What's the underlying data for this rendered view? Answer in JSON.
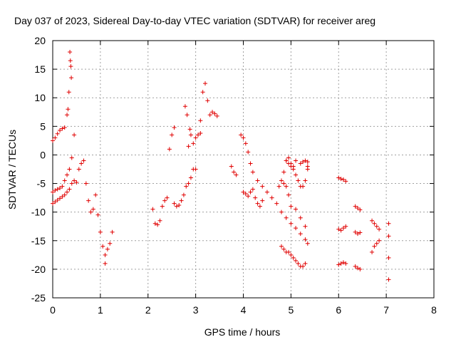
{
  "chart_data": {
    "type": "scatter",
    "title": "Day 037 of 2023, Sidereal Day-to-day VTEC variation (SDTVAR) for receiver areg",
    "xlabel": "GPS time / hours",
    "ylabel": "SDTVAR / TECUs",
    "xlim": [
      0,
      8
    ],
    "ylim": [
      -25,
      20
    ],
    "xticks": [
      0,
      1,
      2,
      3,
      4,
      5,
      6,
      7,
      8
    ],
    "yticks": [
      -25,
      -20,
      -15,
      -10,
      -5,
      0,
      5,
      10,
      15,
      20
    ],
    "xtick_labels": [
      "0",
      "1",
      "2",
      "3",
      "4",
      "5",
      "6",
      "7",
      "8"
    ],
    "ytick_labels": [
      "-25",
      "-20",
      "-15",
      "-10",
      "-5",
      "0",
      "5",
      "10",
      "15",
      "20"
    ],
    "grid": true,
    "marker": "+",
    "marker_color": "#e00000",
    "series": [
      {
        "name": "seg-a-upper",
        "x": [
          0.0,
          0.05,
          0.1,
          0.15,
          0.2,
          0.25,
          0.3,
          0.32,
          0.34,
          0.36
        ],
        "y": [
          2.5,
          3.0,
          3.7,
          4.3,
          4.6,
          4.8,
          7.0,
          8.0,
          11.0,
          18.0
        ]
      },
      {
        "name": "seg-a-spike",
        "x": [
          0.37,
          0.38,
          0.39
        ],
        "y": [
          16.5,
          15.5,
          13.5
        ]
      },
      {
        "name": "seg-a-mid",
        "x": [
          0.0,
          0.05,
          0.1,
          0.15,
          0.2,
          0.25,
          0.3,
          0.35,
          0.4,
          0.45
        ],
        "y": [
          -6.5,
          -6.2,
          -6.0,
          -5.8,
          -5.5,
          -4.5,
          -3.5,
          -2.5,
          -0.5,
          3.5
        ]
      },
      {
        "name": "seg-a-low",
        "x": [
          0.0,
          0.05,
          0.1,
          0.15,
          0.2,
          0.25,
          0.3,
          0.35,
          0.4,
          0.45,
          0.5
        ],
        "y": [
          -8.5,
          -8.2,
          -7.9,
          -7.6,
          -7.3,
          -7.0,
          -6.5,
          -6.0,
          -5.0,
          -4.5,
          -4.8
        ]
      },
      {
        "name": "seg-b",
        "x": [
          0.55,
          0.6,
          0.65,
          0.7,
          0.75,
          0.8,
          0.85,
          0.9,
          0.95,
          1.0,
          1.05,
          1.1
        ],
        "y": [
          -2.5,
          -1.5,
          -1.0,
          -5.0,
          -8.0,
          -10.0,
          -9.5,
          -7.0,
          -10.5,
          -13.5,
          -16.0,
          -19.0
        ]
      },
      {
        "name": "seg-b2",
        "x": [
          1.1,
          1.15,
          1.2,
          1.25
        ],
        "y": [
          -17.5,
          -16.5,
          -15.5,
          -13.5
        ]
      },
      {
        "name": "seg-c",
        "x": [
          2.1,
          2.15,
          2.2,
          2.25,
          2.3,
          2.35,
          2.4
        ],
        "y": [
          -9.5,
          -12.0,
          -12.2,
          -11.5,
          -9.0,
          -8.0,
          -7.5
        ]
      },
      {
        "name": "seg-c2",
        "x": [
          2.45,
          2.5,
          2.55
        ],
        "y": [
          1.0,
          3.5,
          4.8
        ]
      },
      {
        "name": "seg-d",
        "x": [
          2.55,
          2.6,
          2.65,
          2.7,
          2.75,
          2.8,
          2.85,
          2.9,
          2.95,
          3.0
        ],
        "y": [
          -8.5,
          -9.0,
          -8.8,
          -8.0,
          -7.0,
          -5.5,
          -5.0,
          -4.0,
          -2.5,
          -2.5
        ]
      },
      {
        "name": "seg-d2",
        "x": [
          2.78,
          2.82,
          2.85,
          2.88,
          2.9,
          2.95,
          3.0,
          3.05,
          3.1
        ],
        "y": [
          8.5,
          7.0,
          1.5,
          4.5,
          3.5,
          2.0,
          3.0,
          3.5,
          3.8
        ]
      },
      {
        "name": "seg-d3",
        "x": [
          3.1,
          3.15,
          3.2,
          3.25,
          3.3,
          3.35,
          3.4,
          3.45
        ],
        "y": [
          6.0,
          11.0,
          12.5,
          9.5,
          7.0,
          7.5,
          7.2,
          6.8
        ]
      },
      {
        "name": "seg-e",
        "x": [
          3.75,
          3.8,
          3.85
        ],
        "y": [
          -2.0,
          -3.0,
          -3.5
        ]
      },
      {
        "name": "seg-f",
        "x": [
          3.95,
          4.0,
          4.05,
          4.1,
          4.15,
          4.2,
          4.3,
          4.4,
          4.5,
          4.6,
          4.7,
          4.8,
          4.9,
          5.0,
          5.1,
          5.2,
          5.3,
          5.35
        ],
        "y": [
          3.5,
          3.0,
          2.0,
          0.5,
          -1.5,
          -3.0,
          -4.5,
          -5.5,
          -6.5,
          -7.5,
          -8.5,
          -10.0,
          -11.0,
          -12.0,
          -12.8,
          -13.8,
          -14.8,
          -15.5
        ]
      },
      {
        "name": "seg-f2",
        "x": [
          4.0,
          4.05,
          4.1,
          4.15,
          4.2,
          4.25,
          4.3,
          4.35,
          4.4
        ],
        "y": [
          -6.5,
          -6.8,
          -7.2,
          -6.5,
          -6.0,
          -7.5,
          -8.5,
          -9.0,
          -8.0
        ]
      },
      {
        "name": "seg-g",
        "x": [
          4.75,
          4.8,
          4.85,
          4.9,
          4.95,
          5.0,
          5.05,
          5.1
        ],
        "y": [
          -5.5,
          -4.5,
          -3.0,
          -1.0,
          -0.5,
          -1.5,
          -2.0,
          -1.0
        ]
      },
      {
        "name": "seg-g2",
        "x": [
          4.8,
          4.85,
          4.9,
          4.95,
          5.0,
          5.1,
          5.2,
          5.3,
          5.35
        ],
        "y": [
          -4.5,
          -5.0,
          -5.5,
          -7.0,
          -9.0,
          -9.5,
          -11.0,
          -12.5,
          -2.0
        ]
      },
      {
        "name": "seg-g3",
        "x": [
          4.9,
          4.95,
          5.0,
          5.05,
          5.1,
          5.15,
          5.2,
          5.25,
          5.3,
          5.35
        ],
        "y": [
          -1.0,
          -1.5,
          -2.0,
          -2.5,
          -3.5,
          -4.5,
          -5.5,
          -5.5,
          -4.5,
          -2.5
        ]
      },
      {
        "name": "seg-g4",
        "x": [
          5.2,
          5.25,
          5.3,
          5.35
        ],
        "y": [
          -1.5,
          -1.2,
          -1.0,
          -1.2
        ]
      },
      {
        "name": "seg-h",
        "x": [
          4.8,
          4.85,
          4.9,
          4.95,
          5.0,
          5.05,
          5.1,
          5.15,
          5.2,
          5.25,
          5.3
        ],
        "y": [
          -16.0,
          -16.5,
          -17.0,
          -17.0,
          -17.5,
          -18.0,
          -18.5,
          -19.0,
          -19.5,
          -19.5,
          -19.0
        ]
      },
      {
        "name": "seg-i",
        "x": [
          6.0,
          6.05,
          6.1,
          6.15
        ],
        "y": [
          -4.0,
          -4.2,
          -4.3,
          -4.6
        ]
      },
      {
        "name": "seg-i2",
        "x": [
          6.0,
          6.05,
          6.1,
          6.15
        ],
        "y": [
          -13.0,
          -13.2,
          -12.8,
          -12.5
        ]
      },
      {
        "name": "seg-i3",
        "x": [
          6.0,
          6.05,
          6.1,
          6.15
        ],
        "y": [
          -19.2,
          -19.0,
          -18.8,
          -19.0
        ]
      },
      {
        "name": "seg-j",
        "x": [
          6.35,
          6.4,
          6.45
        ],
        "y": [
          -9.0,
          -9.3,
          -9.6
        ]
      },
      {
        "name": "seg-j2",
        "x": [
          6.35,
          6.4,
          6.45
        ],
        "y": [
          -13.5,
          -13.8,
          -13.6
        ]
      },
      {
        "name": "seg-j3",
        "x": [
          6.35,
          6.4,
          6.45
        ],
        "y": [
          -19.5,
          -19.8,
          -20.0
        ]
      },
      {
        "name": "seg-k",
        "x": [
          6.7,
          6.75,
          6.8,
          6.85
        ],
        "y": [
          -11.5,
          -12.0,
          -12.5,
          -13.0
        ]
      },
      {
        "name": "seg-k2",
        "x": [
          6.7,
          6.75,
          6.8,
          6.85
        ],
        "y": [
          -17.0,
          -16.0,
          -15.5,
          -15.0
        ]
      },
      {
        "name": "seg-l",
        "x": [
          7.05,
          7.05,
          7.05,
          7.05
        ],
        "y": [
          -12.0,
          -14.2,
          -18.0,
          -21.8
        ]
      }
    ]
  }
}
